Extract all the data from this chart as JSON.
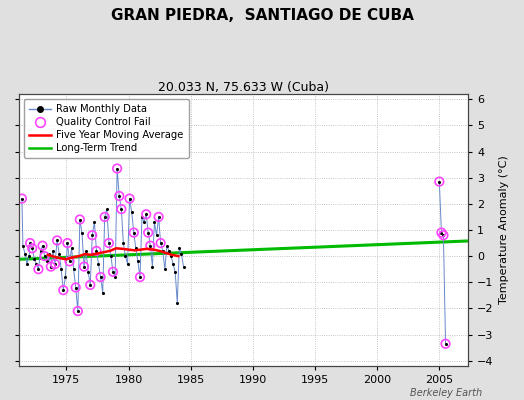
{
  "title": "GRAN PIEDRA,  SANTIAGO DE CUBA",
  "subtitle": "20.033 N, 75.633 W (Cuba)",
  "ylabel": "Temperature Anomaly (°C)",
  "watermark": "Berkeley Earth",
  "ylim": [
    -4.2,
    6.2
  ],
  "xlim": [
    1971.2,
    2007.3
  ],
  "xticks": [
    1975,
    1980,
    1985,
    1990,
    1995,
    2000,
    2005
  ],
  "yticks": [
    -4,
    -3,
    -2,
    -1,
    0,
    1,
    2,
    3,
    4,
    5,
    6
  ],
  "background_color": "#e0e0e0",
  "plot_bg_color": "#ffffff",
  "raw_line_color": "#6688cc",
  "raw_dot_color": "#000000",
  "qc_fail_color": "#ff44ff",
  "moving_avg_color": "#ff0000",
  "trend_color": "#00bb00",
  "raw_data": [
    [
      1971.42,
      2.2
    ],
    [
      1971.5,
      0.4
    ],
    [
      1971.67,
      0.1
    ],
    [
      1971.83,
      -0.3
    ],
    [
      1972.0,
      0.0
    ],
    [
      1972.08,
      0.5
    ],
    [
      1972.25,
      0.3
    ],
    [
      1972.42,
      -0.1
    ],
    [
      1972.58,
      -0.3
    ],
    [
      1972.75,
      -0.5
    ],
    [
      1972.92,
      0.2
    ],
    [
      1973.08,
      0.4
    ],
    [
      1973.25,
      0.0
    ],
    [
      1973.42,
      -0.2
    ],
    [
      1973.58,
      0.1
    ],
    [
      1973.75,
      -0.4
    ],
    [
      1973.92,
      0.2
    ],
    [
      1974.08,
      -0.3
    ],
    [
      1974.25,
      0.6
    ],
    [
      1974.42,
      0.1
    ],
    [
      1974.58,
      -0.5
    ],
    [
      1974.75,
      -1.3
    ],
    [
      1974.92,
      -0.8
    ],
    [
      1975.08,
      0.5
    ],
    [
      1975.25,
      -0.2
    ],
    [
      1975.42,
      0.3
    ],
    [
      1975.58,
      -0.5
    ],
    [
      1975.75,
      -1.2
    ],
    [
      1975.92,
      -2.1
    ],
    [
      1976.08,
      1.4
    ],
    [
      1976.25,
      0.9
    ],
    [
      1976.42,
      -0.4
    ],
    [
      1976.58,
      0.2
    ],
    [
      1976.75,
      -0.6
    ],
    [
      1976.92,
      -1.1
    ],
    [
      1977.08,
      0.8
    ],
    [
      1977.25,
      1.3
    ],
    [
      1977.42,
      0.2
    ],
    [
      1977.58,
      -0.3
    ],
    [
      1977.75,
      -0.8
    ],
    [
      1977.92,
      -1.4
    ],
    [
      1978.08,
      1.5
    ],
    [
      1978.25,
      1.8
    ],
    [
      1978.42,
      0.5
    ],
    [
      1978.58,
      0.0
    ],
    [
      1978.75,
      -0.6
    ],
    [
      1978.92,
      -0.8
    ],
    [
      1979.08,
      3.35
    ],
    [
      1979.25,
      2.3
    ],
    [
      1979.42,
      1.8
    ],
    [
      1979.58,
      0.5
    ],
    [
      1979.75,
      0.0
    ],
    [
      1979.92,
      -0.3
    ],
    [
      1980.08,
      2.2
    ],
    [
      1980.25,
      1.7
    ],
    [
      1980.42,
      0.9
    ],
    [
      1980.58,
      0.3
    ],
    [
      1980.75,
      -0.2
    ],
    [
      1980.92,
      -0.8
    ],
    [
      1981.08,
      1.5
    ],
    [
      1981.25,
      1.3
    ],
    [
      1981.42,
      1.6
    ],
    [
      1981.58,
      0.9
    ],
    [
      1981.75,
      0.4
    ],
    [
      1981.92,
      -0.4
    ],
    [
      1982.08,
      1.3
    ],
    [
      1982.25,
      0.8
    ],
    [
      1982.42,
      1.5
    ],
    [
      1982.58,
      0.5
    ],
    [
      1982.75,
      0.2
    ],
    [
      1982.92,
      -0.5
    ],
    [
      1983.08,
      0.4
    ],
    [
      1983.25,
      0.2
    ],
    [
      1983.42,
      0.0
    ],
    [
      1983.58,
      -0.3
    ],
    [
      1983.75,
      -0.6
    ],
    [
      1983.92,
      -1.8
    ],
    [
      1984.08,
      0.3
    ],
    [
      1984.25,
      0.1
    ],
    [
      1984.42,
      -0.4
    ]
  ],
  "qc_fail_points": [
    [
      1971.42,
      2.2
    ],
    [
      1972.08,
      0.5
    ],
    [
      1972.25,
      0.3
    ],
    [
      1972.75,
      -0.5
    ],
    [
      1973.08,
      0.4
    ],
    [
      1973.25,
      0.0
    ],
    [
      1973.75,
      -0.4
    ],
    [
      1974.08,
      -0.3
    ],
    [
      1974.25,
      0.6
    ],
    [
      1974.75,
      -1.3
    ],
    [
      1975.08,
      0.5
    ],
    [
      1975.25,
      -0.2
    ],
    [
      1975.75,
      -1.2
    ],
    [
      1975.92,
      -2.1
    ],
    [
      1976.08,
      1.4
    ],
    [
      1976.42,
      -0.4
    ],
    [
      1976.92,
      -1.1
    ],
    [
      1977.08,
      0.8
    ],
    [
      1977.42,
      0.2
    ],
    [
      1977.75,
      -0.8
    ],
    [
      1978.08,
      1.5
    ],
    [
      1978.42,
      0.5
    ],
    [
      1978.75,
      -0.6
    ],
    [
      1979.08,
      3.35
    ],
    [
      1979.25,
      2.3
    ],
    [
      1979.42,
      1.8
    ],
    [
      1980.08,
      2.2
    ],
    [
      1980.42,
      0.9
    ],
    [
      1980.92,
      -0.8
    ],
    [
      1981.42,
      1.6
    ],
    [
      1981.58,
      0.9
    ],
    [
      1981.75,
      0.4
    ],
    [
      1982.42,
      1.5
    ],
    [
      1982.58,
      0.5
    ],
    [
      2005.0,
      2.85
    ],
    [
      2005.17,
      0.9
    ],
    [
      2005.33,
      0.8
    ],
    [
      2005.5,
      -3.35
    ]
  ],
  "late_raw_data": [
    [
      2005.0,
      2.85
    ],
    [
      2005.17,
      0.9
    ],
    [
      2005.33,
      0.8
    ],
    [
      2005.5,
      -3.35
    ]
  ],
  "moving_avg": [
    [
      1973.5,
      0.05
    ],
    [
      1974.0,
      -0.02
    ],
    [
      1974.5,
      -0.08
    ],
    [
      1975.0,
      -0.12
    ],
    [
      1975.5,
      -0.05
    ],
    [
      1976.0,
      0.0
    ],
    [
      1976.5,
      0.08
    ],
    [
      1977.0,
      0.05
    ],
    [
      1977.5,
      0.1
    ],
    [
      1978.0,
      0.15
    ],
    [
      1978.5,
      0.2
    ],
    [
      1979.0,
      0.3
    ],
    [
      1979.5,
      0.28
    ],
    [
      1980.0,
      0.25
    ],
    [
      1980.5,
      0.22
    ],
    [
      1981.0,
      0.25
    ],
    [
      1981.5,
      0.28
    ],
    [
      1982.0,
      0.25
    ],
    [
      1982.5,
      0.2
    ],
    [
      1983.0,
      0.12
    ],
    [
      1983.5,
      0.05
    ],
    [
      1984.0,
      0.0
    ]
  ],
  "trend_x": [
    1971.2,
    2007.3
  ],
  "trend_y": [
    -0.12,
    0.58
  ]
}
